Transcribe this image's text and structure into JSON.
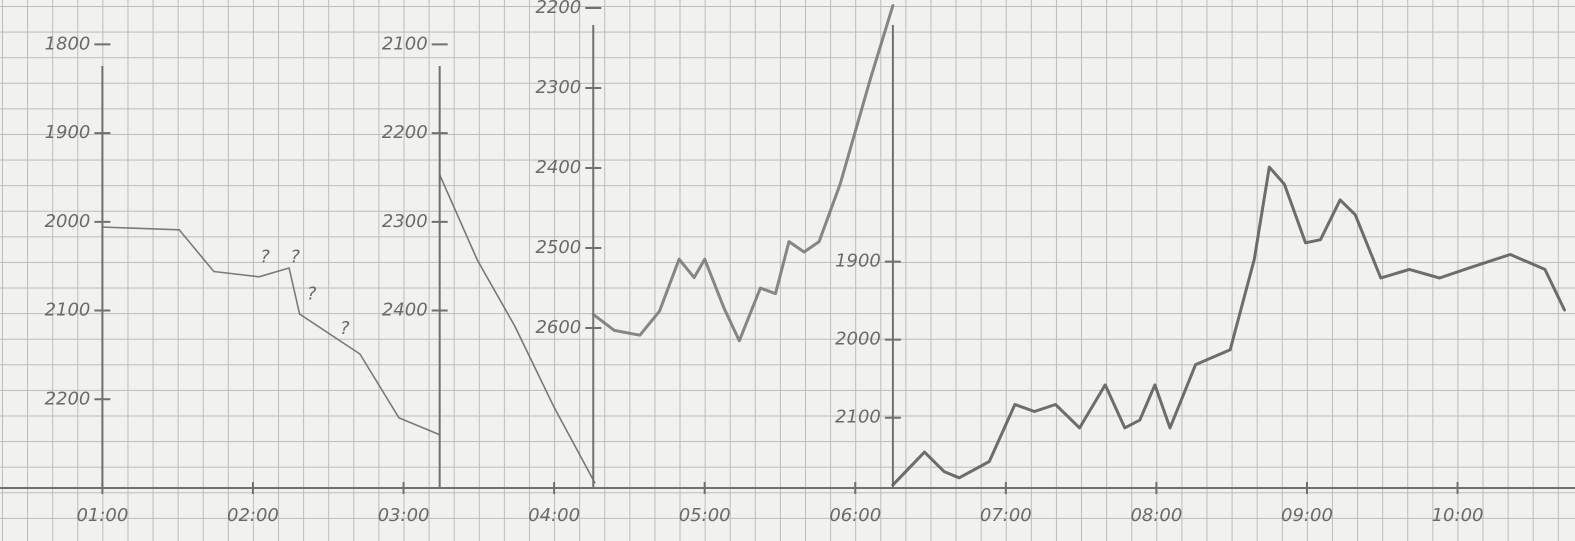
{
  "chart_data": [
    {
      "type": "line",
      "color": "#6e6e6e",
      "x": [
        1.0,
        1.51,
        1.74,
        2.04,
        2.24,
        2.31,
        2.71,
        2.97,
        3.24
      ],
      "values": [
        2006,
        2009,
        2056,
        2062,
        2052,
        2104,
        2149,
        2221,
        2240
      ],
      "ylim": [
        2300,
        1750
      ],
      "yticks": [
        1800,
        1900,
        2000,
        2100,
        2200
      ],
      "annotations": [
        {
          "text": "?",
          "x": 2.08,
          "y": 2040
        },
        {
          "text": "?",
          "x": 2.28,
          "y": 2040
        },
        {
          "text": "?",
          "x": 2.39,
          "y": 2082
        },
        {
          "text": "?",
          "x": 2.61,
          "y": 2121
        }
      ]
    },
    {
      "type": "line",
      "color": "#6a6a6a",
      "x": [
        3.24,
        3.49,
        3.74,
        4.0,
        4.27
      ],
      "values": [
        2247,
        2343,
        2418,
        2509,
        2594
      ],
      "ylim": [
        2600,
        2050
      ],
      "yticks": [
        2100,
        2200,
        2300,
        2400
      ]
    },
    {
      "type": "line",
      "color": "#7a7a7a",
      "x": [
        4.26,
        4.4,
        4.57,
        4.7,
        4.83,
        4.93,
        5.0,
        5.13,
        5.23,
        5.37,
        5.47,
        5.56,
        5.66,
        5.76,
        5.9,
        6.1,
        6.25
      ],
      "values": [
        2583,
        2603,
        2609,
        2579,
        2514,
        2537,
        2514,
        2576,
        2616,
        2550,
        2557,
        2492,
        2505,
        2492,
        2420,
        2289,
        2197
      ],
      "ylim": [
        2800,
        2190
      ],
      "yticks": [
        2200,
        2300,
        2400,
        2500,
        2600
      ]
    },
    {
      "type": "line",
      "color": "#5e5e5e",
      "x": [
        6.25,
        6.46,
        6.59,
        6.69,
        6.89,
        7.06,
        7.19,
        7.33,
        7.49,
        7.66,
        7.79,
        7.89,
        7.99,
        8.09,
        8.26,
        8.49,
        8.65,
        8.75,
        8.85,
        8.99,
        9.09,
        9.22,
        9.32,
        9.49,
        9.68,
        9.88,
        10.08,
        10.35,
        10.58,
        10.71
      ],
      "values": [
        2186,
        2144,
        2169,
        2177,
        2156,
        2083,
        2092,
        2083,
        2113,
        2058,
        2113,
        2103,
        2058,
        2113,
        2032,
        2013,
        1897,
        1779,
        1801,
        1876,
        1872,
        1821,
        1840,
        1921,
        1910,
        1921,
        1908,
        1891,
        1910,
        1962
      ],
      "ylim": [
        2190,
        1565
      ],
      "yticks": [
        1900,
        2000,
        2100
      ]
    }
  ],
  "x_axis": {
    "xlim": [
      0.32,
      10.78
    ],
    "xticks": [
      {
        "value": 1,
        "label": "01:00"
      },
      {
        "value": 2,
        "label": "02:00"
      },
      {
        "value": 3,
        "label": "03:00"
      },
      {
        "value": 4,
        "label": "04:00"
      },
      {
        "value": 5,
        "label": "05:00"
      },
      {
        "value": 6,
        "label": "06:00"
      },
      {
        "value": 7,
        "label": "07:00"
      },
      {
        "value": 8,
        "label": "08:00"
      },
      {
        "value": 9,
        "label": "09:00"
      },
      {
        "value": 10,
        "label": "10:00"
      }
    ]
  }
}
